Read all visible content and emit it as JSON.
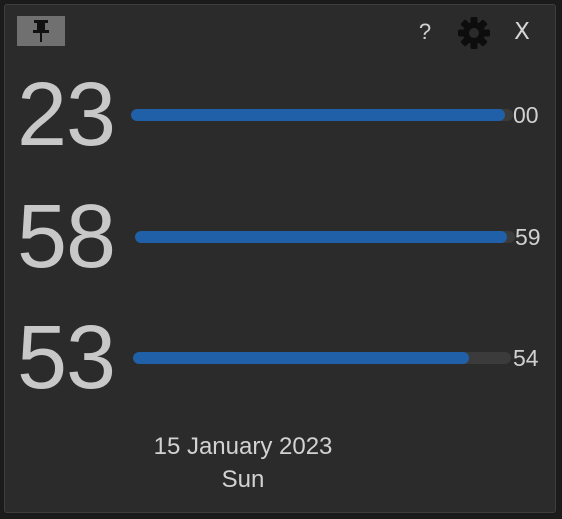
{
  "toolbar": {
    "pin_icon": "pushpin-icon",
    "help_label": "?",
    "settings_icon": "gear-icon",
    "close_label": "X"
  },
  "clock": {
    "hours": {
      "value": "23",
      "next": "00",
      "progress": 0.98
    },
    "minutes": {
      "value": "58",
      "next": "59",
      "progress": 0.98
    },
    "seconds": {
      "value": "53",
      "next": "54",
      "progress": 0.89
    }
  },
  "date": {
    "full": "15 January 2023",
    "weekday": "Sun"
  },
  "colors": {
    "background": "#2b2b2b",
    "accent": "#2060a8",
    "track": "#3b3b3b",
    "text": "#c8c8c8"
  }
}
